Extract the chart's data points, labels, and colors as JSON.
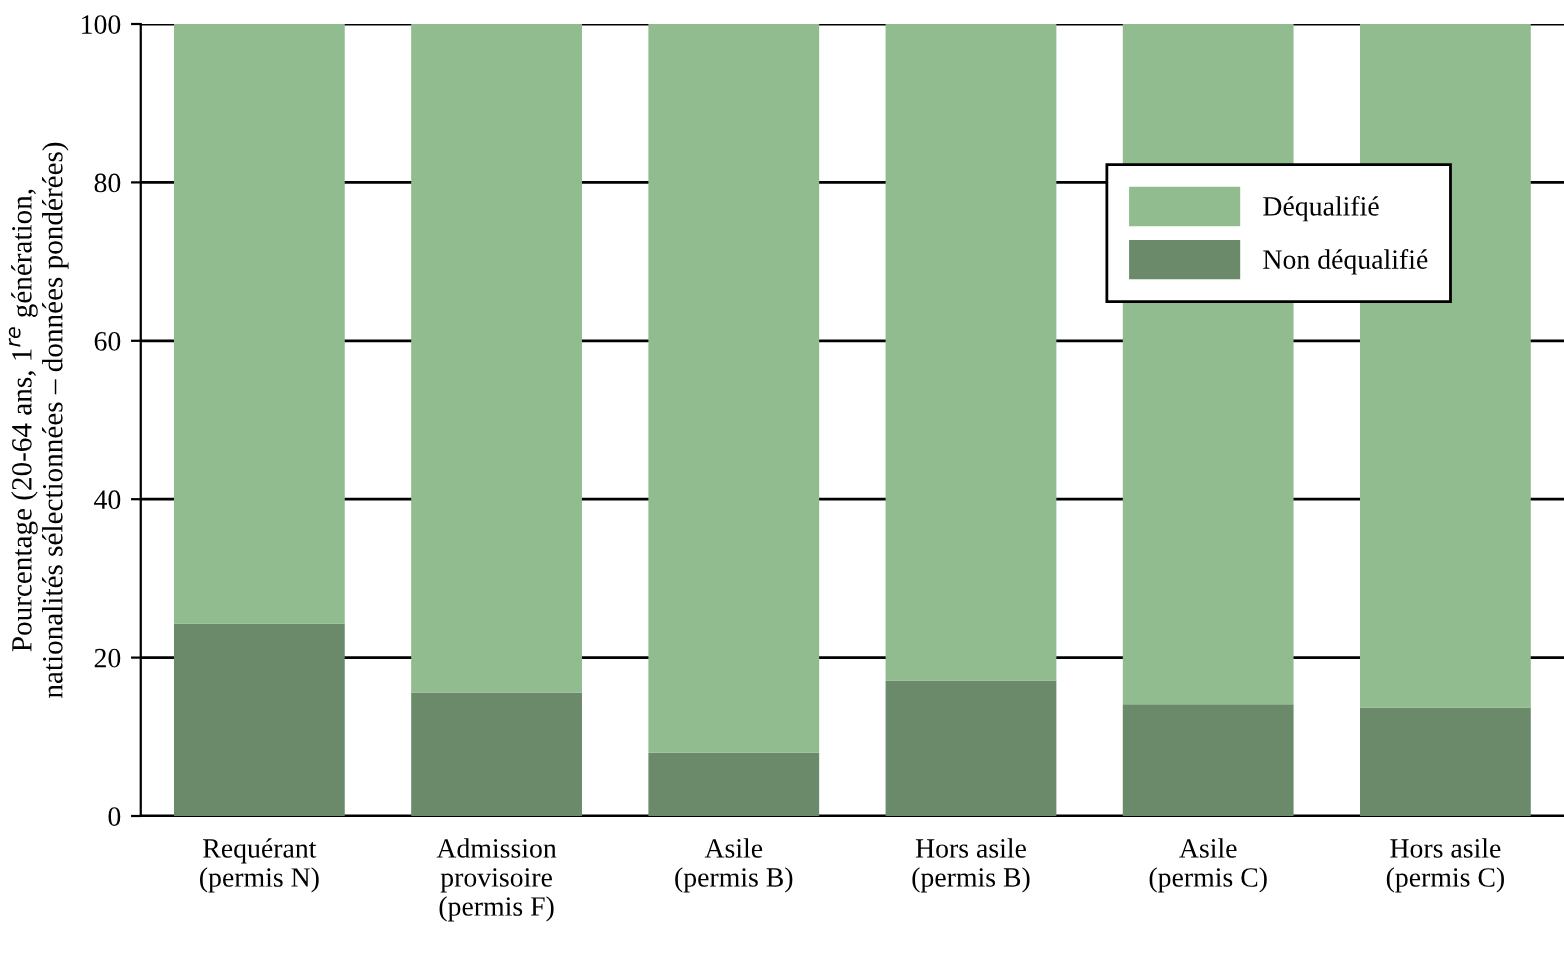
{
  "chart_data": {
    "type": "bar",
    "stacked": true,
    "categories": [
      "Requérant\n(permis N)",
      "Admission\nprovisoire\n(permis F)",
      "Asile\n(permis B)",
      "Hors asile\n(permis B)",
      "Asile\n(permis C)",
      "Hors asile\n(permis C)"
    ],
    "ylabel": "Pourcentage (20-64 ans, 1$^{re}$ génération,\nnationalités sélectionnées – données pondérées)",
    "series": [
      {
        "name": "Non déqualifié",
        "color": "#6a8a6a",
        "values": [
          24.3,
          15.6,
          8.0,
          17.1,
          14.1,
          13.7
        ]
      },
      {
        "name": "Déqualifié",
        "color": "#91bc8f",
        "values": [
          75.7,
          84.4,
          92.0,
          82.9,
          85.9,
          86.3
        ]
      }
    ],
    "ylim": [
      0,
      100
    ],
    "yticks": [
      0,
      20,
      40,
      60,
      80,
      100
    ],
    "grid": "y",
    "legend": "top right"
  }
}
